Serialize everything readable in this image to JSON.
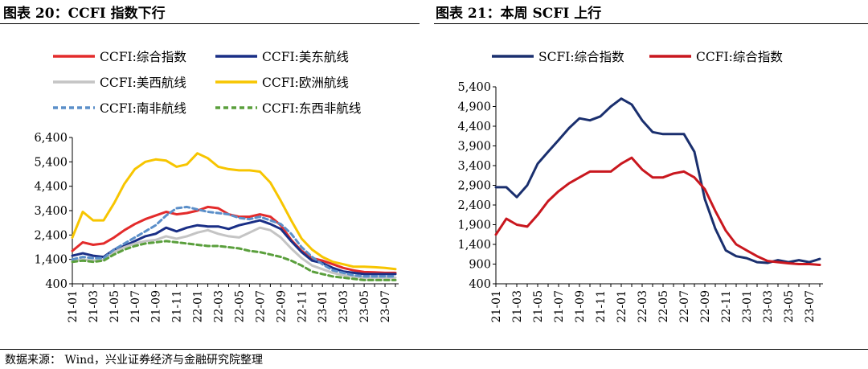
{
  "left_title": "图表 20：CCFI 指数下行",
  "right_title": "图表 21：本周 SCFI 上行",
  "source": "数据来源：  Wind，兴业证券经济与金融研究院整理",
  "chart_data": [
    {
      "type": "line",
      "title": "图表 20：CCFI 指数下行",
      "ylim": [
        400,
        6400
      ],
      "yticks": [
        "6,400",
        "5,400",
        "4,400",
        "3,400",
        "2,400",
        "1,400",
        "400"
      ],
      "ytick_values": [
        6400,
        5400,
        4400,
        3400,
        2400,
        1400,
        400
      ],
      "xlabels": [
        "21-01",
        "21-03",
        "21-05",
        "21-07",
        "21-09",
        "21-11",
        "22-01",
        "22-03",
        "22-05",
        "22-07",
        "22-09",
        "22-11",
        "23-01",
        "23-03",
        "23-05",
        "23-07"
      ],
      "legend_placement": "top",
      "x": [
        "21-01",
        "21-02",
        "21-03",
        "21-04",
        "21-05",
        "21-06",
        "21-07",
        "21-08",
        "21-09",
        "21-10",
        "21-11",
        "21-12",
        "22-01",
        "22-02",
        "22-03",
        "22-04",
        "22-05",
        "22-06",
        "22-07",
        "22-08",
        "22-09",
        "22-10",
        "22-11",
        "22-12",
        "23-01",
        "23-02",
        "23-03",
        "23-04",
        "23-05",
        "23-06",
        "23-07",
        "23-08"
      ],
      "series": [
        {
          "name": "CCFI:综合指数",
          "color": "#e32b2b",
          "dash": "solid",
          "values": [
            1750,
            2100,
            2000,
            2050,
            2300,
            2600,
            2850,
            3050,
            3200,
            3350,
            3250,
            3300,
            3400,
            3550,
            3500,
            3250,
            3150,
            3150,
            3250,
            3150,
            2800,
            2200,
            1750,
            1450,
            1350,
            1200,
            1050,
            950,
            880,
            870,
            850,
            850
          ]
        },
        {
          "name": "CCFI:美东航线",
          "color": "#1a2f86",
          "dash": "solid",
          "values": [
            1550,
            1650,
            1550,
            1500,
            1800,
            1950,
            2150,
            2350,
            2450,
            2700,
            2550,
            2700,
            2800,
            2750,
            2750,
            2650,
            2800,
            2900,
            3000,
            2850,
            2650,
            2150,
            1700,
            1350,
            1250,
            1050,
            900,
            850,
            800,
            800,
            800,
            800
          ]
        },
        {
          "name": "CCFI:美西航线",
          "color": "#c4c4c4",
          "dash": "solid",
          "values": [
            1350,
            1400,
            1350,
            1400,
            1700,
            1900,
            2050,
            2150,
            2200,
            2350,
            2250,
            2350,
            2500,
            2600,
            2450,
            2350,
            2300,
            2500,
            2700,
            2600,
            2300,
            1850,
            1450,
            1150,
            1000,
            850,
            750,
            700,
            650,
            650,
            650,
            650
          ]
        },
        {
          "name": "CCFI:欧洲航线",
          "color": "#f7c500",
          "dash": "solid",
          "values": [
            2300,
            3350,
            3000,
            3000,
            3700,
            4500,
            5100,
            5400,
            5500,
            5450,
            5200,
            5300,
            5750,
            5550,
            5200,
            5100,
            5050,
            5050,
            5000,
            4550,
            3800,
            3000,
            2250,
            1800,
            1500,
            1300,
            1200,
            1100,
            1100,
            1080,
            1050,
            1000
          ]
        },
        {
          "name": "CCFI:南非航线",
          "color": "#5b8fc9",
          "dash": "dash",
          "values": [
            1400,
            1500,
            1450,
            1450,
            1800,
            2050,
            2300,
            2550,
            2800,
            3200,
            3500,
            3550,
            3450,
            3350,
            3300,
            3250,
            3100,
            3050,
            3150,
            3000,
            2850,
            2450,
            1900,
            1500,
            1200,
            950,
            850,
            750,
            700,
            700,
            700,
            700
          ]
        },
        {
          "name": "CCFI:东西非航线",
          "color": "#5a9f3c",
          "dash": "dash",
          "values": [
            1300,
            1350,
            1300,
            1350,
            1600,
            1800,
            1950,
            2050,
            2100,
            2150,
            2100,
            2050,
            2000,
            1950,
            1950,
            1900,
            1850,
            1750,
            1700,
            1600,
            1500,
            1350,
            1150,
            900,
            800,
            700,
            650,
            600,
            550,
            550,
            550,
            550
          ]
        }
      ]
    },
    {
      "type": "line",
      "title": "图表 21：本周 SCFI 上行",
      "ylim": [
        400,
        5400
      ],
      "yticks": [
        "5,400",
        "4,900",
        "4,400",
        "3,900",
        "3,400",
        "2,900",
        "2,400",
        "1,900",
        "1,400",
        "900",
        "400"
      ],
      "ytick_values": [
        5400,
        4900,
        4400,
        3900,
        3400,
        2900,
        2400,
        1900,
        1400,
        900,
        400
      ],
      "xlabels": [
        "21-01",
        "21-03",
        "21-05",
        "21-07",
        "21-09",
        "21-11",
        "22-01",
        "22-03",
        "22-05",
        "22-07",
        "22-09",
        "22-11",
        "23-01",
        "23-03",
        "23-05",
        "23-07"
      ],
      "legend_placement": "top",
      "x": [
        "21-01",
        "21-02",
        "21-03",
        "21-04",
        "21-05",
        "21-06",
        "21-07",
        "21-08",
        "21-09",
        "21-10",
        "21-11",
        "21-12",
        "22-01",
        "22-02",
        "22-03",
        "22-04",
        "22-05",
        "22-06",
        "22-07",
        "22-08",
        "22-09",
        "22-10",
        "22-11",
        "22-12",
        "23-01",
        "23-02",
        "23-03",
        "23-04",
        "23-05",
        "23-06",
        "23-07",
        "23-08"
      ],
      "series": [
        {
          "name": "SCFI:综合指数",
          "color": "#1a2f6e",
          "dash": "solid",
          "values": [
            2850,
            2850,
            2600,
            2900,
            3450,
            3750,
            4050,
            4350,
            4600,
            4550,
            4650,
            4900,
            5100,
            4950,
            4550,
            4250,
            4200,
            4200,
            4200,
            3750,
            2550,
            1800,
            1250,
            1100,
            1050,
            950,
            930,
            1000,
            950,
            1000,
            950,
            1030
          ]
        },
        {
          "name": "CCFI:综合指数",
          "color": "#c9171e",
          "dash": "solid",
          "values": [
            1650,
            2050,
            1900,
            1850,
            2150,
            2500,
            2750,
            2950,
            3100,
            3250,
            3250,
            3250,
            3450,
            3600,
            3300,
            3100,
            3100,
            3200,
            3250,
            3100,
            2800,
            2250,
            1750,
            1400,
            1250,
            1100,
            980,
            950,
            920,
            900,
            900,
            880
          ]
        }
      ]
    }
  ]
}
